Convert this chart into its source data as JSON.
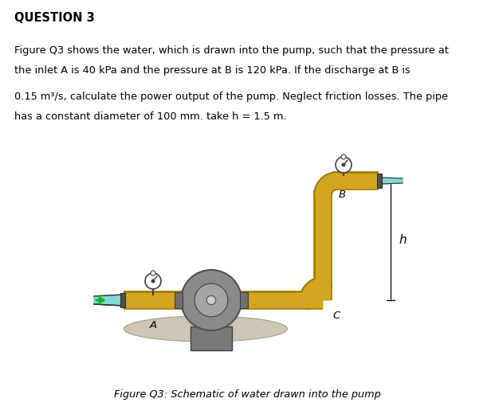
{
  "title": "QUESTION 3",
  "line1": "Figure Q3 shows the water, which is drawn into the pump, such that the pressure at",
  "line2": "the inlet A is 40 kPa and the pressure at B is 120 kPa. If the discharge at B is",
  "line3": "0.15 m³/s, calculate the power output of the pump. Neglect friction losses. The pipe",
  "line4": "has a constant diameter of 100 mm. take h = 1.5 m.",
  "caption": "Figure Q3: Schematic of water drawn into the pump",
  "pipe_color": "#D4A520",
  "pipe_shadow": "#A07800",
  "bg_color": "#ffffff",
  "arrow_color": "#00BB00",
  "water_color": "#80D8D8",
  "ground_color": "#C8C0B0",
  "pump_gray": "#909090",
  "pump_light": "#B0B0B0",
  "pump_dark": "#606060",
  "label_A": "A",
  "label_B": "B",
  "label_C": "C",
  "label_h": "h",
  "fig_width": 6.21,
  "fig_height": 5.25,
  "dpi": 100
}
